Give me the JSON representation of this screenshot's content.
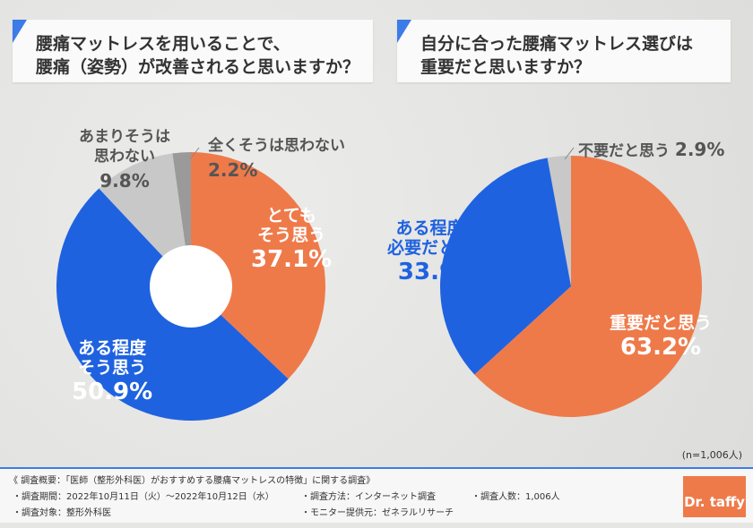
{
  "colors": {
    "orange": "#ee7a4a",
    "blue": "#1f62e0",
    "lightgray": "#c8c8c8",
    "darkgray": "#9a9a9a",
    "accent": "#3d7be8"
  },
  "chart_data": [
    {
      "type": "pie",
      "title": "腰痛マットレスを用いることで、\n腰痛（姿勢）が改善されると思いますか？",
      "slices": [
        {
          "label": "とても\nそう思う",
          "value": 37.1,
          "pct": "37.1%",
          "color": "#ee7a4a"
        },
        {
          "label": "ある程度\nそう思う",
          "value": 50.9,
          "pct": "50.9%",
          "color": "#1f62e0"
        },
        {
          "label": "あまりそうは\n思わない",
          "value": 9.8,
          "pct": "9.8%",
          "color": "#c8c8c8"
        },
        {
          "label": "全くそうは思わない",
          "value": 2.2,
          "pct": "2.2%",
          "color": "#9a9a9a"
        }
      ]
    },
    {
      "type": "pie",
      "title": "自分に合った腰痛マットレス選びは\n重要だと思いますか？",
      "slices": [
        {
          "label": "重要だと思う",
          "value": 63.2,
          "pct": "63.2%",
          "color": "#ee7a4a"
        },
        {
          "label": "ある程度は\n必要だと思う",
          "value": 33.9,
          "pct": "33.9%",
          "color": "#1f62e0"
        },
        {
          "label": "不要だと思う",
          "value": 2.9,
          "pct": "2.9%",
          "color": "#c8c8c8"
        }
      ]
    }
  ],
  "sample": "(n=1,006人)",
  "footer": {
    "title": "《 調査概要：「医師（整形外科医）がおすすめする腰痛マットレスの特徴」に関する調査》",
    "period": "・調査期間：2022年10月11日（火）～2022年10月12日（水）",
    "method": "・調査方法：インターネット調査",
    "count": "・調査人数：1,006人",
    "target": "・調査対象：整形外科医",
    "provider": "・モニター提供元：ゼネラルリサーチ",
    "logo": "Dr. taffy"
  }
}
